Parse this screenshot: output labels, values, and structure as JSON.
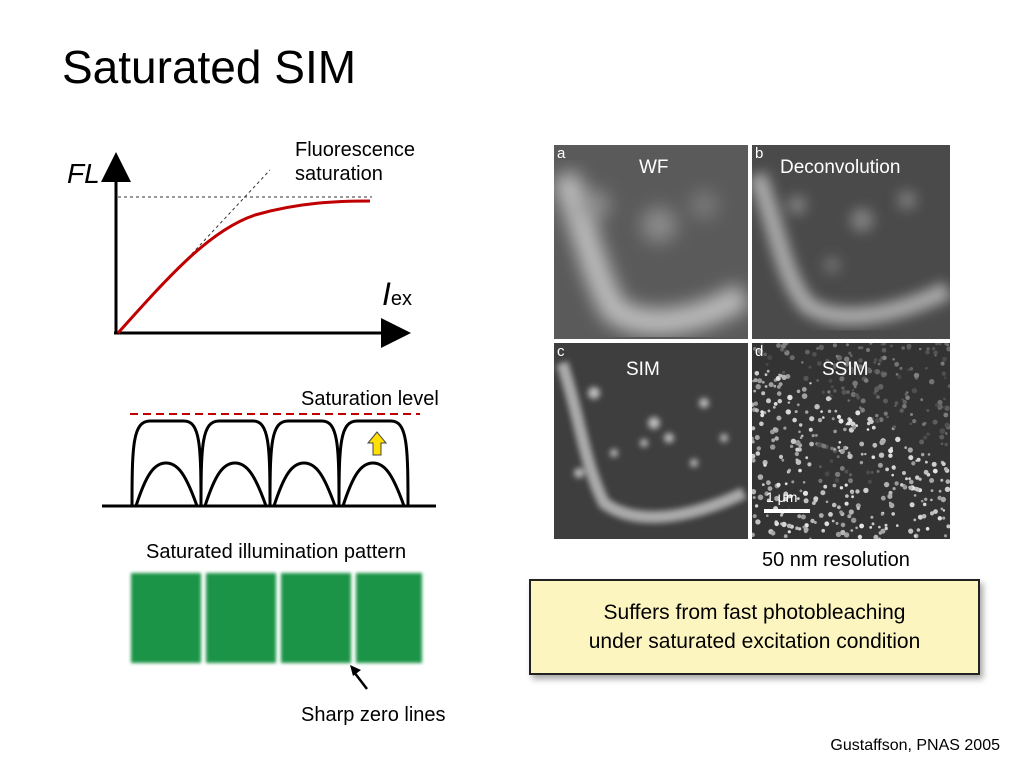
{
  "slide": {
    "title": "Saturated SIM",
    "reference": "Gustaffson, PNAS 2005"
  },
  "saturation_curve": {
    "y_axis_label": "FL",
    "x_axis_label_main": "I",
    "x_axis_label_sub": "ex",
    "annotation_line1": "Fluorescence",
    "annotation_line2": "saturation",
    "curve_color": "#c00000"
  },
  "illumination_profile": {
    "saturation_label": "Saturation level",
    "saturation_line_color": "#c00000",
    "arrow_color": "#ffe000",
    "pattern_label": "Saturated illumination pattern",
    "stripe_color": "#1f9447",
    "zero_lines_label": "Sharp zero lines"
  },
  "microscopy_panels": [
    {
      "letter": "a",
      "label": "WF"
    },
    {
      "letter": "b",
      "label": "Deconvolution"
    },
    {
      "letter": "c",
      "label": "SIM"
    },
    {
      "letter": "d",
      "label": "SSIM"
    }
  ],
  "scale_bar_label": "1 μm",
  "resolution_label": "50 nm resolution",
  "callout": {
    "line1": "Suffers from fast photobleaching",
    "line2": "under saturated excitation condition"
  }
}
